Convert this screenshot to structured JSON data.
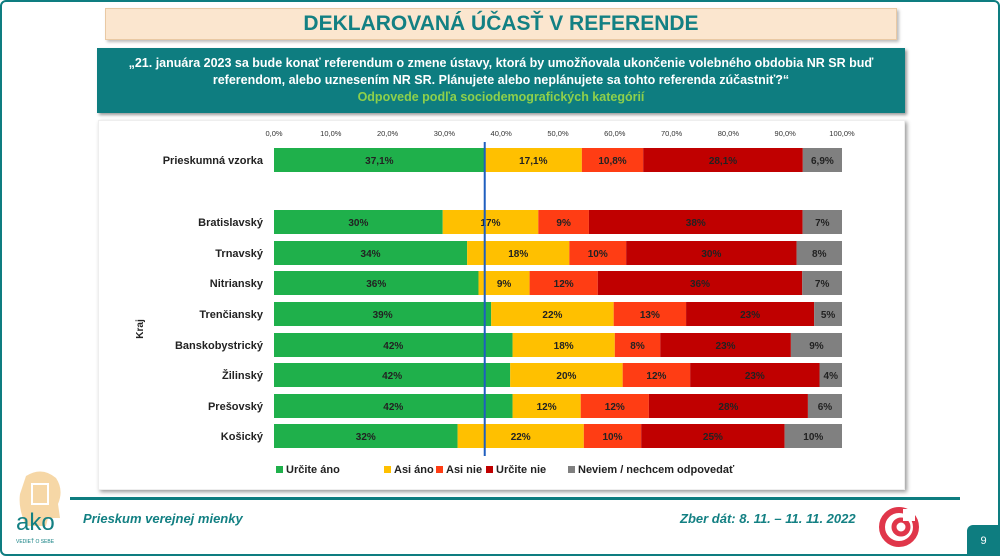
{
  "title": "DEKLAROVANÁ ÚČASŤ V REFERENDE",
  "question": "„21. januára 2023 sa bude konať referendum o zmene ústavy, ktorá by umožňovala ukončenie volebného obdobia NR SR buď referendom, alebo uznesením NR SR. Plánujete alebo neplánujete sa tohto referenda zúčastniť?“",
  "subtitle": "Odpovede podľa sociodemografických kategórií",
  "footer": {
    "left": "Prieskum verejnej mienky",
    "right": "Zber dát: 8. 11. – 11. 11. 2022",
    "page": "9",
    "logo_text": "ako",
    "logo_tagline": "VEDIEŤ O SEBE"
  },
  "chart_data": {
    "type": "bar",
    "orientation": "horizontal",
    "stacked": true,
    "xlim": [
      0,
      100
    ],
    "xticks": [
      "0,0%",
      "10,0%",
      "20,0%",
      "30,0%",
      "40,0%",
      "50,0%",
      "60,0%",
      "70,0%",
      "80,0%",
      "90,0%",
      "100,0%"
    ],
    "group_label": "Kraj",
    "reference_line": 37.1,
    "legend_position": "bottom",
    "series": [
      {
        "name": "Určite áno",
        "color": "#1fb04b"
      },
      {
        "name": "Asi áno",
        "color": "#ffc000"
      },
      {
        "name": "Asi nie",
        "color": "#ff3d14"
      },
      {
        "name": "Určite nie",
        "color": "#c00000"
      },
      {
        "name": "Neviem / nechcem odpovedať",
        "color": "#808080"
      }
    ],
    "rows": [
      {
        "category": "Prieskumná vzorka",
        "values": [
          37.1,
          17.1,
          10.8,
          28.1,
          6.9
        ],
        "labels": [
          "37,1%",
          "17,1%",
          "10,8%",
          "28,1%",
          "6,9%"
        ]
      },
      {
        "category": "Bratislavský",
        "values": [
          30,
          17,
          9,
          38,
          7
        ],
        "labels": [
          "30%",
          "17%",
          "9%",
          "38%",
          "7%"
        ]
      },
      {
        "category": "Trnavský",
        "values": [
          34,
          18,
          10,
          30,
          8
        ],
        "labels": [
          "34%",
          "18%",
          "10%",
          "30%",
          "8%"
        ]
      },
      {
        "category": "Nitriansky",
        "values": [
          36,
          9,
          12,
          36,
          7
        ],
        "labels": [
          "36%",
          "9%",
          "12%",
          "36%",
          "7%"
        ]
      },
      {
        "category": "Trenčiansky",
        "values": [
          39,
          22,
          13,
          23,
          5
        ],
        "labels": [
          "39%",
          "22%",
          "13%",
          "23%",
          "5%"
        ]
      },
      {
        "category": "Banskobystrický",
        "values": [
          42,
          18,
          8,
          23,
          9
        ],
        "labels": [
          "42%",
          "18%",
          "8%",
          "23%",
          "9%"
        ]
      },
      {
        "category": "Žilinský",
        "values": [
          42,
          20,
          12,
          23,
          4
        ],
        "labels": [
          "42%",
          "20%",
          "12%",
          "23%",
          "4%"
        ]
      },
      {
        "category": "Prešovský",
        "values": [
          42,
          12,
          12,
          28,
          6
        ],
        "labels": [
          "42%",
          "12%",
          "12%",
          "28%",
          "6%"
        ]
      },
      {
        "category": "Košický",
        "values": [
          32,
          22,
          10,
          25,
          10
        ],
        "labels": [
          "32%",
          "22%",
          "10%",
          "25%",
          "10%"
        ]
      }
    ]
  }
}
